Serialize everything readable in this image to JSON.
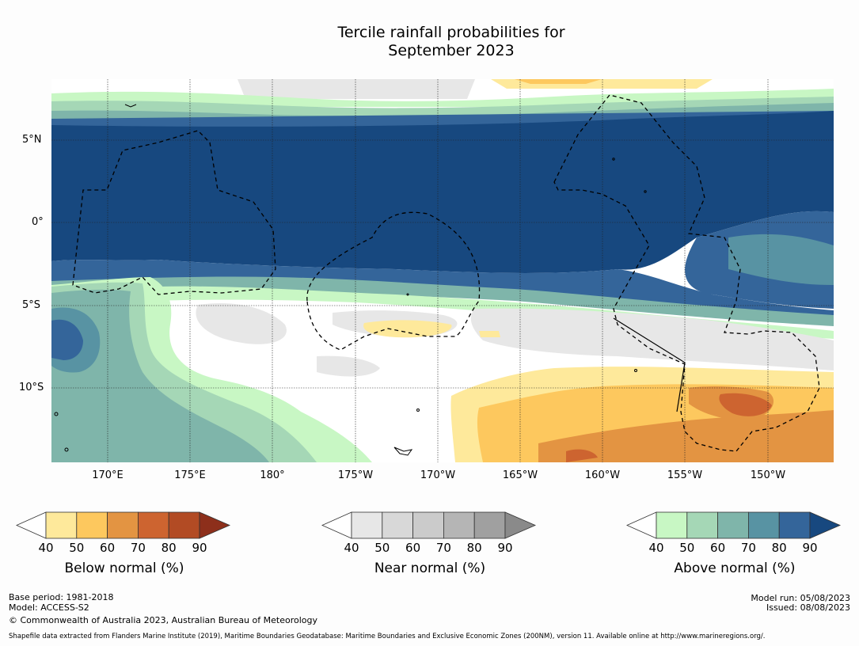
{
  "title": {
    "line1": "Tercile rainfall probabilities for",
    "line2": "September 2023"
  },
  "map": {
    "lat_labels": [
      "5°N",
      "0°",
      "5°S",
      "10°S"
    ],
    "lon_labels": [
      "170°E",
      "175°E",
      "180°",
      "175°W",
      "170°W",
      "165°W",
      "160°W",
      "155°W",
      "150°W"
    ]
  },
  "colorbars": {
    "below": {
      "title": "Below normal (%)",
      "ticks": [
        "40",
        "50",
        "60",
        "70",
        "80",
        "90"
      ],
      "colors": [
        "#ffffff",
        "#fee99b",
        "#fdc85e",
        "#e39442",
        "#cd6430",
        "#b24b24",
        "#8d2f1b"
      ]
    },
    "near": {
      "title": "Near normal (%)",
      "ticks": [
        "40",
        "50",
        "60",
        "70",
        "80",
        "90"
      ],
      "colors": [
        "#ffffff",
        "#e7e7e7",
        "#d8d8d8",
        "#cbcbcb",
        "#b5b5b5",
        "#a0a0a0",
        "#8a8a8a"
      ]
    },
    "above": {
      "title": "Above normal (%)",
      "ticks": [
        "40",
        "50",
        "60",
        "70",
        "80",
        "90"
      ],
      "colors": [
        "#ffffff",
        "#c8f7c4",
        "#a5d7b6",
        "#7fb5aa",
        "#5893a3",
        "#34659a",
        "#17487f"
      ]
    }
  },
  "footer": {
    "base_period": "Base period: 1981-2018",
    "model": "Model: ACCESS-S2",
    "copyright": "© Commonwealth of Australia 2023, Australian Bureau of Meteorology",
    "model_run": "Model run: 05/08/2023",
    "issued": "Issued: 08/08/2023",
    "shapefile": "Shapefile data extracted from Flanders Marine Institute (2019), Maritime Boundaries Geodatabase: Maritime Boundaries and Exclusive Economic Zones (200NM), version 11. Available online at http://www.marineregions.org/."
  }
}
